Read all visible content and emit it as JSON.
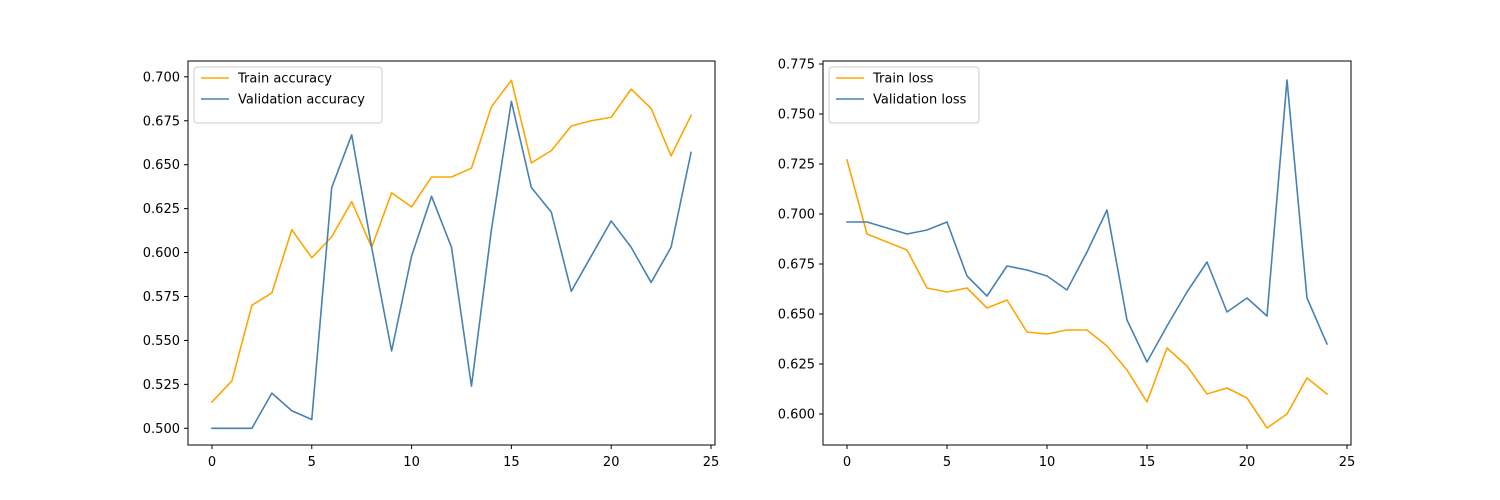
{
  "chart_data": [
    {
      "type": "line",
      "title": "",
      "xlabel": "",
      "ylabel": "",
      "xlim": [
        -1.2,
        25.2
      ],
      "ylim": [
        0.4905,
        0.709
      ],
      "xticks": [
        0,
        5,
        10,
        15,
        20,
        25
      ],
      "yticks": [
        0.5,
        0.525,
        0.55,
        0.575,
        0.6,
        0.625,
        0.65,
        0.675,
        0.7
      ],
      "ytick_labels": [
        "0.500",
        "0.525",
        "0.550",
        "0.575",
        "0.600",
        "0.625",
        "0.650",
        "0.675",
        "0.700"
      ],
      "grid": false,
      "legend_position": "upper-left",
      "x": [
        0,
        1,
        2,
        3,
        4,
        5,
        6,
        7,
        8,
        9,
        10,
        11,
        12,
        13,
        14,
        15,
        16,
        17,
        18,
        19,
        20,
        21,
        22,
        23,
        24
      ],
      "series": [
        {
          "name": "Train accuracy",
          "color": "#ffa500",
          "values": [
            0.515,
            0.527,
            0.57,
            0.577,
            0.613,
            0.597,
            0.609,
            0.629,
            0.603,
            0.634,
            0.626,
            0.643,
            0.643,
            0.648,
            0.683,
            0.698,
            0.651,
            0.658,
            0.672,
            0.675,
            0.677,
            0.693,
            0.682,
            0.655,
            0.678
          ]
        },
        {
          "name": "Validation accuracy",
          "color": "#4682b4",
          "values": [
            0.5,
            0.5,
            0.5,
            0.52,
            0.51,
            0.505,
            0.637,
            0.667,
            0.603,
            0.544,
            0.598,
            0.632,
            0.603,
            0.524,
            0.613,
            0.686,
            0.637,
            0.623,
            0.578,
            0.598,
            0.618,
            0.603,
            0.583,
            0.603,
            0.657
          ]
        }
      ]
    },
    {
      "type": "line",
      "title": "",
      "xlabel": "",
      "ylabel": "",
      "xlim": [
        -1.2,
        25.2
      ],
      "ylim": [
        0.5845,
        0.7765
      ],
      "xticks": [
        0,
        5,
        10,
        15,
        20,
        25
      ],
      "yticks": [
        0.6,
        0.625,
        0.65,
        0.675,
        0.7,
        0.725,
        0.75,
        0.775
      ],
      "ytick_labels": [
        "0.600",
        "0.625",
        "0.650",
        "0.675",
        "0.700",
        "0.725",
        "0.750",
        "0.775"
      ],
      "grid": false,
      "legend_position": "upper-left",
      "x": [
        0,
        1,
        2,
        3,
        4,
        5,
        6,
        7,
        8,
        9,
        10,
        11,
        12,
        13,
        14,
        15,
        16,
        17,
        18,
        19,
        20,
        21,
        22,
        23,
        24
      ],
      "series": [
        {
          "name": "Train loss",
          "color": "#ffa500",
          "values": [
            0.727,
            0.69,
            0.686,
            0.682,
            0.663,
            0.661,
            0.663,
            0.653,
            0.657,
            0.641,
            0.64,
            0.642,
            0.642,
            0.634,
            0.622,
            0.606,
            0.633,
            0.624,
            0.61,
            0.613,
            0.608,
            0.593,
            0.6,
            0.618,
            0.61
          ]
        },
        {
          "name": "Validation loss",
          "color": "#4682b4",
          "values": [
            0.696,
            0.696,
            0.693,
            0.69,
            0.692,
            0.696,
            0.669,
            0.659,
            0.674,
            0.672,
            0.669,
            0.662,
            0.681,
            0.702,
            0.647,
            0.626,
            0.644,
            0.661,
            0.676,
            0.651,
            0.658,
            0.649,
            0.767,
            0.658,
            0.635
          ]
        }
      ]
    }
  ]
}
